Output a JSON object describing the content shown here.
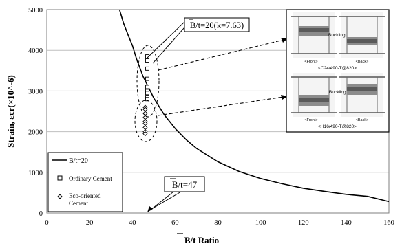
{
  "chart_data": {
    "type": "line",
    "title": "",
    "xlabel": "B/t Ratio",
    "ylabel": "Strain, εcr(×10^-6)",
    "xlim": [
      0,
      160
    ],
    "ylim": [
      0,
      5000
    ],
    "x_ticks": [
      "0",
      "20",
      "40",
      "60",
      "80",
      "100",
      "120",
      "140",
      "160"
    ],
    "y_ticks": [
      "0",
      "1000",
      "2000",
      "3000",
      "4000",
      "5000"
    ],
    "grid": "horizontal",
    "legend_position": "bottom-left",
    "curve": {
      "name": "B/t=20",
      "x": [
        34,
        36,
        38,
        40,
        42,
        45,
        50,
        55,
        60,
        65,
        70,
        80,
        90,
        100,
        110,
        120,
        130,
        140,
        150,
        160
      ],
      "y": [
        5000,
        4650,
        4380,
        4120,
        3780,
        3360,
        2830,
        2410,
        2080,
        1810,
        1590,
        1260,
        1020,
        850,
        720,
        610,
        530,
        460,
        410,
        280
      ]
    },
    "series": [
      {
        "name": "Ordinary Cement",
        "marker": "square",
        "x": [
          47,
          47,
          47,
          47,
          47,
          47,
          47,
          47,
          47
        ],
        "y": [
          3850,
          3750,
          3550,
          3300,
          3100,
          3000,
          2950,
          2850,
          2800
        ]
      },
      {
        "name": "Eco-oriented Cement",
        "marker": "diamond",
        "x": [
          46,
          46,
          46,
          46,
          46,
          46,
          46,
          46,
          46
        ],
        "y": [
          2600,
          2550,
          2450,
          2350,
          2250,
          2200,
          2100,
          2000,
          1950
        ]
      }
    ],
    "legend": [
      {
        "label": "B/t=20",
        "symbol": "line"
      },
      {
        "label": "Ordinary Cement",
        "symbol": "square"
      },
      {
        "label": "Eco-oriented Cement",
        "symbol": "diamond"
      }
    ],
    "annotations": {
      "callout_top": "B/t=20(k=7.63)",
      "callout_bottom": "B/t=47",
      "buckling_label_1": "Buckling",
      "buckling_label_2": "Buckling",
      "photo_top_front": "<Front>",
      "photo_top_back": "<Back>",
      "photo_top_caption": "<C24/490-T@820>",
      "photo_bottom_front": "<Front>",
      "photo_bottom_back": "<Back>",
      "photo_bottom_caption": "<H16/490-T@820>"
    }
  }
}
